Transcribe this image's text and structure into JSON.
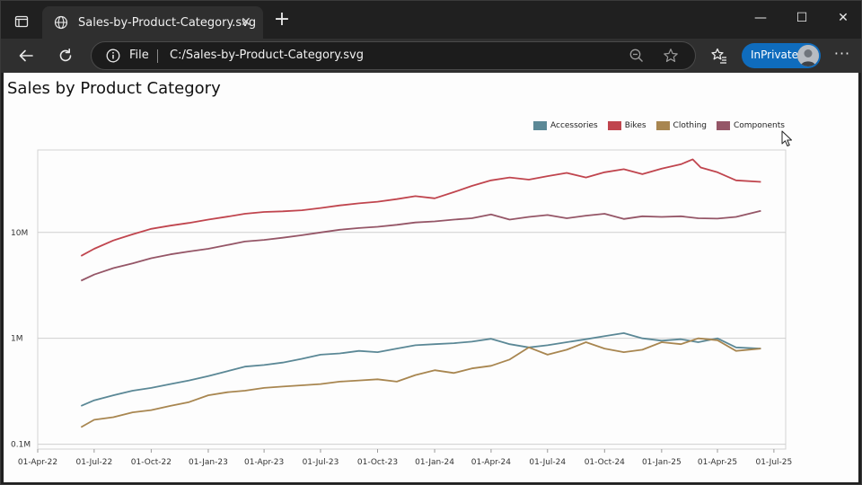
{
  "browser": {
    "tab_title": "Sales-by-Product-Category.svg",
    "scheme_label": "File",
    "url": "C:/Sales-by-Product-Category.svg",
    "inprivate_label": "InPrivate",
    "more_label": "···",
    "close_tab_glyph": "✕",
    "new_tab_glyph": "+",
    "minimize_glyph": "—",
    "maximize_glyph": "☐",
    "close_window_glyph": "✕"
  },
  "page": {
    "title": "Sales by Product Category"
  },
  "colors": {
    "accessories": "#5b8896",
    "bikes": "#c0454e",
    "clothing": "#a88650",
    "components": "#955667",
    "gridline": "#cfcfcf",
    "accent": "#0f6cbd"
  },
  "chart_data": {
    "type": "line",
    "title": "",
    "y_scale": "log",
    "ylim": [
      0.09,
      60
    ],
    "y_unit": "M",
    "y_ticks": [
      {
        "value": 0.1,
        "label": "0.1M"
      },
      {
        "value": 1,
        "label": "1M"
      },
      {
        "value": 10,
        "label": "10M"
      }
    ],
    "xlim": [
      "2022-04-01",
      "2025-07-20"
    ],
    "x_ticks": [
      "01-Apr-22",
      "01-Jul-22",
      "01-Oct-22",
      "01-Jan-23",
      "01-Apr-23",
      "01-Jul-23",
      "01-Oct-23",
      "01-Jan-24",
      "01-Apr-24",
      "01-Jul-24",
      "01-Oct-24",
      "01-Jan-25",
      "01-Apr-25",
      "01-Jul-25"
    ],
    "x_tick_dates": [
      "2022-04-01",
      "2022-07-01",
      "2022-10-01",
      "2023-01-01",
      "2023-04-01",
      "2023-07-01",
      "2023-10-01",
      "2024-01-01",
      "2024-04-01",
      "2024-07-01",
      "2024-10-01",
      "2025-01-01",
      "2025-04-01",
      "2025-07-01"
    ],
    "grid": "horizontal",
    "legend": "top-right",
    "series": [
      {
        "name": "Bikes",
        "points": [
          [
            "2022-06-10",
            6.0
          ],
          [
            "2022-07-01",
            7.0
          ],
          [
            "2022-08-01",
            8.4
          ],
          [
            "2022-09-01",
            9.6
          ],
          [
            "2022-10-01",
            10.8
          ],
          [
            "2022-11-01",
            11.6
          ],
          [
            "2022-12-01",
            12.3
          ],
          [
            "2023-01-01",
            13.2
          ],
          [
            "2023-02-01",
            14.1
          ],
          [
            "2023-03-01",
            15.0
          ],
          [
            "2023-04-01",
            15.6
          ],
          [
            "2023-05-01",
            15.8
          ],
          [
            "2023-06-01",
            16.2
          ],
          [
            "2023-07-01",
            17.0
          ],
          [
            "2023-08-01",
            18.0
          ],
          [
            "2023-09-01",
            18.8
          ],
          [
            "2023-10-01",
            19.5
          ],
          [
            "2023-11-01",
            20.6
          ],
          [
            "2023-12-01",
            22.0
          ],
          [
            "2024-01-01",
            21.0
          ],
          [
            "2024-02-01",
            24.0
          ],
          [
            "2024-03-01",
            27.5
          ],
          [
            "2024-04-01",
            31.0
          ],
          [
            "2024-05-01",
            33.0
          ],
          [
            "2024-06-01",
            31.5
          ],
          [
            "2024-07-01",
            34.0
          ],
          [
            "2024-08-01",
            36.5
          ],
          [
            "2024-09-01",
            33.0
          ],
          [
            "2024-10-01",
            37.0
          ],
          [
            "2024-11-01",
            39.5
          ],
          [
            "2024-12-01",
            35.5
          ],
          [
            "2025-01-01",
            40.0
          ],
          [
            "2025-02-01",
            44.0
          ],
          [
            "2025-02-20",
            49.0
          ],
          [
            "2025-03-05",
            41.0
          ],
          [
            "2025-04-01",
            37.0
          ],
          [
            "2025-05-01",
            31.0
          ],
          [
            "2025-06-10",
            30.0
          ]
        ]
      },
      {
        "name": "Components",
        "points": [
          [
            "2022-06-10",
            3.5
          ],
          [
            "2022-07-01",
            4.0
          ],
          [
            "2022-08-01",
            4.6
          ],
          [
            "2022-09-01",
            5.1
          ],
          [
            "2022-10-01",
            5.7
          ],
          [
            "2022-11-01",
            6.2
          ],
          [
            "2022-12-01",
            6.6
          ],
          [
            "2023-01-01",
            7.0
          ],
          [
            "2023-02-01",
            7.6
          ],
          [
            "2023-03-01",
            8.2
          ],
          [
            "2023-04-01",
            8.5
          ],
          [
            "2023-05-01",
            8.9
          ],
          [
            "2023-06-01",
            9.4
          ],
          [
            "2023-07-01",
            10.0
          ],
          [
            "2023-08-01",
            10.6
          ],
          [
            "2023-09-01",
            11.0
          ],
          [
            "2023-10-01",
            11.3
          ],
          [
            "2023-11-01",
            11.8
          ],
          [
            "2023-12-01",
            12.4
          ],
          [
            "2024-01-01",
            12.7
          ],
          [
            "2024-02-01",
            13.2
          ],
          [
            "2024-03-01",
            13.6
          ],
          [
            "2024-04-01",
            14.8
          ],
          [
            "2024-05-01",
            13.2
          ],
          [
            "2024-06-01",
            14.0
          ],
          [
            "2024-07-01",
            14.6
          ],
          [
            "2024-08-01",
            13.6
          ],
          [
            "2024-09-01",
            14.4
          ],
          [
            "2024-10-01",
            15.0
          ],
          [
            "2024-11-01",
            13.4
          ],
          [
            "2024-12-01",
            14.2
          ],
          [
            "2025-01-01",
            14.0
          ],
          [
            "2025-02-01",
            14.2
          ],
          [
            "2025-03-01",
            13.6
          ],
          [
            "2025-04-01",
            13.5
          ],
          [
            "2025-05-01",
            14.0
          ],
          [
            "2025-06-10",
            16.0
          ]
        ]
      },
      {
        "name": "Accessories",
        "points": [
          [
            "2022-06-10",
            0.23
          ],
          [
            "2022-07-01",
            0.26
          ],
          [
            "2022-08-01",
            0.29
          ],
          [
            "2022-09-01",
            0.32
          ],
          [
            "2022-10-01",
            0.34
          ],
          [
            "2022-11-01",
            0.37
          ],
          [
            "2022-12-01",
            0.4
          ],
          [
            "2023-01-01",
            0.44
          ],
          [
            "2023-02-01",
            0.49
          ],
          [
            "2023-03-01",
            0.54
          ],
          [
            "2023-04-01",
            0.56
          ],
          [
            "2023-05-01",
            0.59
          ],
          [
            "2023-06-01",
            0.64
          ],
          [
            "2023-07-01",
            0.7
          ],
          [
            "2023-08-01",
            0.72
          ],
          [
            "2023-09-01",
            0.76
          ],
          [
            "2023-10-01",
            0.74
          ],
          [
            "2023-11-01",
            0.8
          ],
          [
            "2023-12-01",
            0.86
          ],
          [
            "2024-01-01",
            0.88
          ],
          [
            "2024-02-01",
            0.9
          ],
          [
            "2024-03-01",
            0.93
          ],
          [
            "2024-04-01",
            0.99
          ],
          [
            "2024-05-01",
            0.88
          ],
          [
            "2024-06-01",
            0.82
          ],
          [
            "2024-07-01",
            0.86
          ],
          [
            "2024-08-01",
            0.92
          ],
          [
            "2024-09-01",
            0.98
          ],
          [
            "2024-10-01",
            1.05
          ],
          [
            "2024-11-01",
            1.12
          ],
          [
            "2024-12-01",
            1.0
          ],
          [
            "2025-01-01",
            0.95
          ],
          [
            "2025-02-01",
            0.98
          ],
          [
            "2025-03-01",
            0.92
          ],
          [
            "2025-04-01",
            1.0
          ],
          [
            "2025-05-01",
            0.82
          ],
          [
            "2025-06-10",
            0.8
          ]
        ]
      },
      {
        "name": "Clothing",
        "points": [
          [
            "2022-06-10",
            0.145
          ],
          [
            "2022-07-01",
            0.17
          ],
          [
            "2022-08-01",
            0.18
          ],
          [
            "2022-09-01",
            0.2
          ],
          [
            "2022-10-01",
            0.21
          ],
          [
            "2022-11-01",
            0.23
          ],
          [
            "2022-12-01",
            0.25
          ],
          [
            "2023-01-01",
            0.29
          ],
          [
            "2023-02-01",
            0.31
          ],
          [
            "2023-03-01",
            0.32
          ],
          [
            "2023-04-01",
            0.34
          ],
          [
            "2023-05-01",
            0.35
          ],
          [
            "2023-06-01",
            0.36
          ],
          [
            "2023-07-01",
            0.37
          ],
          [
            "2023-08-01",
            0.39
          ],
          [
            "2023-09-01",
            0.4
          ],
          [
            "2023-10-01",
            0.41
          ],
          [
            "2023-11-01",
            0.39
          ],
          [
            "2023-12-01",
            0.45
          ],
          [
            "2024-01-01",
            0.5
          ],
          [
            "2024-02-01",
            0.47
          ],
          [
            "2024-03-01",
            0.52
          ],
          [
            "2024-04-01",
            0.55
          ],
          [
            "2024-05-01",
            0.63
          ],
          [
            "2024-06-01",
            0.82
          ],
          [
            "2024-07-01",
            0.7
          ],
          [
            "2024-08-01",
            0.78
          ],
          [
            "2024-09-01",
            0.92
          ],
          [
            "2024-10-01",
            0.8
          ],
          [
            "2024-11-01",
            0.74
          ],
          [
            "2024-12-01",
            0.78
          ],
          [
            "2025-01-01",
            0.92
          ],
          [
            "2025-02-01",
            0.88
          ],
          [
            "2025-03-01",
            1.0
          ],
          [
            "2025-04-01",
            0.96
          ],
          [
            "2025-05-01",
            0.76
          ],
          [
            "2025-06-10",
            0.8
          ]
        ]
      }
    ]
  }
}
